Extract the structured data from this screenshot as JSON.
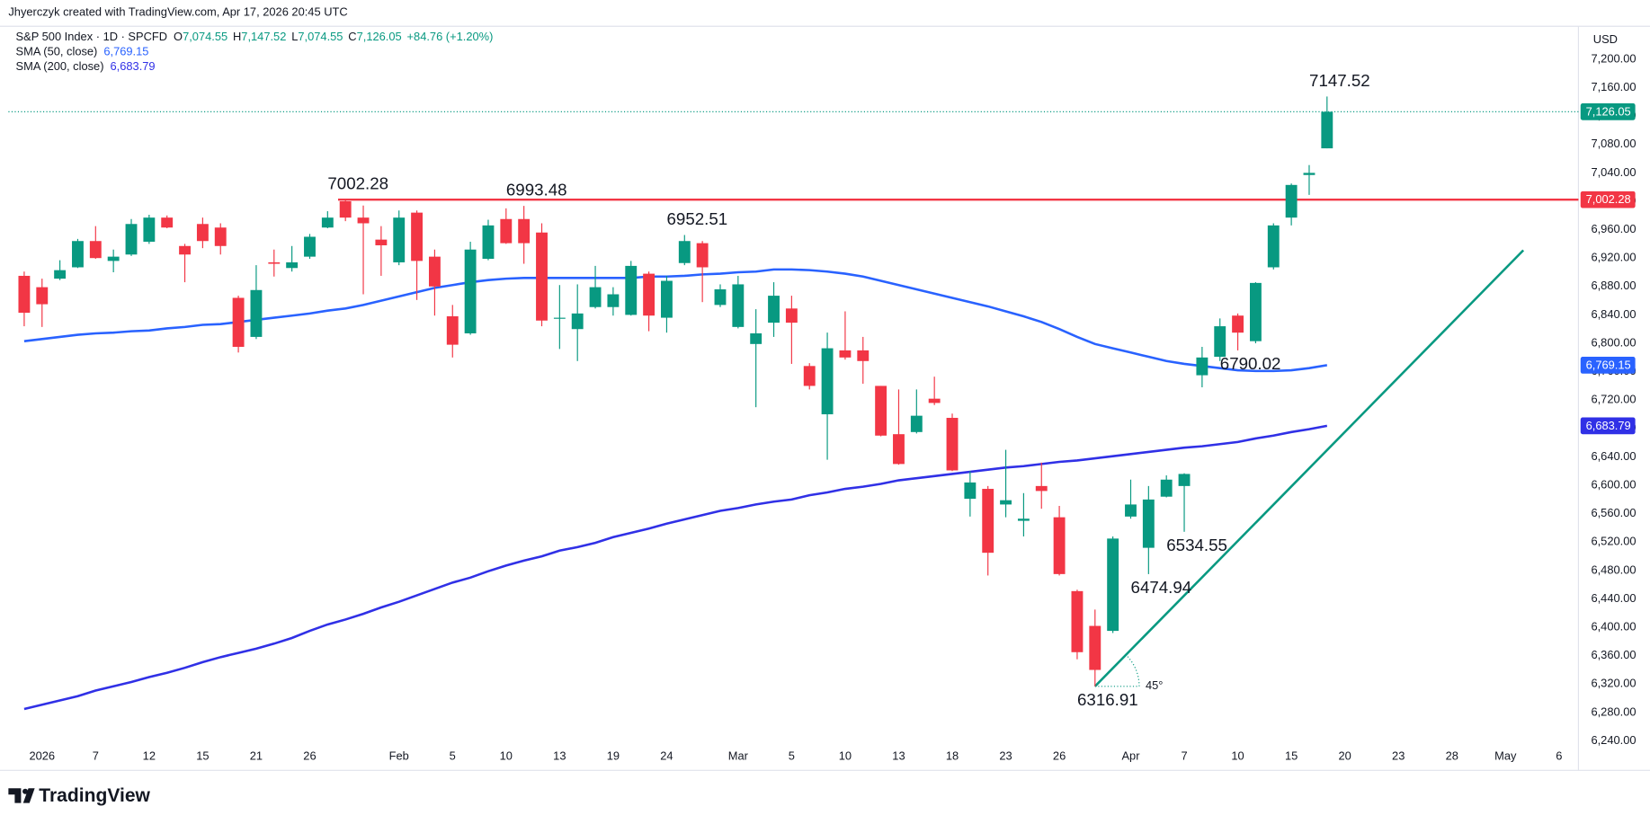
{
  "header": {
    "credit": "Jhyerczyk created with TradingView.com, Apr 17, 2026 20:45 UTC",
    "brand": "TradingView"
  },
  "chart_data": {
    "type": "candlestick",
    "title": "S&P 500 Index · 1D · SPCFD",
    "ohlc_legend": [
      {
        "key": "O",
        "value": "7,074.55"
      },
      {
        "key": "H",
        "value": "7,147.52"
      },
      {
        "key": "L",
        "value": "7,074.55"
      },
      {
        "key": "C",
        "value": "7,126.05"
      }
    ],
    "change": "+84.76 (+1.20%)",
    "close_label": "7,126.05",
    "currency": "USD",
    "colors": {
      "up": "#089981",
      "down": "#f23645"
    },
    "x": [
      "2025-12-31",
      "2026-01-02",
      "2026-01-05",
      "2026-01-06",
      "2026-01-07",
      "2026-01-08",
      "2026-01-09",
      "2026-01-12",
      "2026-01-13",
      "2026-01-14",
      "2026-01-15",
      "2026-01-16",
      "2026-01-20",
      "2026-01-21",
      "2026-01-22",
      "2026-01-23",
      "2026-01-26",
      "2026-01-27",
      "2026-01-28",
      "2026-01-29",
      "2026-01-30",
      "2026-02-02",
      "2026-02-03",
      "2026-02-04",
      "2026-02-05",
      "2026-02-06",
      "2026-02-09",
      "2026-02-10",
      "2026-02-11",
      "2026-02-12",
      "2026-02-13",
      "2026-02-17",
      "2026-02-18",
      "2026-02-19",
      "2026-02-20",
      "2026-02-23",
      "2026-02-24",
      "2026-02-25",
      "2026-02-26",
      "2026-02-27",
      "2026-03-02",
      "2026-03-03",
      "2026-03-04",
      "2026-03-05",
      "2026-03-06",
      "2026-03-09",
      "2026-03-10",
      "2026-03-11",
      "2026-03-12",
      "2026-03-13",
      "2026-03-16",
      "2026-03-17",
      "2026-03-18",
      "2026-03-19",
      "2026-03-20",
      "2026-03-23",
      "2026-03-24",
      "2026-03-25",
      "2026-03-26",
      "2026-03-27",
      "2026-03-30",
      "2026-03-31",
      "2026-04-01",
      "2026-04-02",
      "2026-04-06",
      "2026-04-07",
      "2026-04-08",
      "2026-04-09",
      "2026-04-10",
      "2026-04-13",
      "2026-04-14",
      "2026-04-15",
      "2026-04-16",
      "2026-04-17"
    ],
    "open": [
      6895,
      6879,
      6891,
      6907,
      6944,
      6916,
      6925,
      6943,
      6977,
      6937,
      6968,
      6963,
      6864,
      6809,
      6914,
      6906,
      6922,
      6963,
      7000,
      6977,
      6946,
      6914,
      6984,
      6922,
      6838,
      6814,
      6919,
      6975,
      6975,
      6956,
      6835,
      6820,
      6851,
      6851,
      6840,
      6898,
      6836,
      6913,
      6941,
      6854,
      6823,
      6799,
      6829,
      6849,
      6768,
      6700,
      6790,
      6790,
      6740,
      6672,
      6675,
      6722,
      6695,
      6581,
      6595,
      6573,
      6550,
      6599,
      6555,
      6451,
      6402,
      6395,
      6556,
      6512,
      6584,
      6599,
      6755,
      6781,
      6839,
      6803,
      6907,
      6977,
      7037,
      7074.55
    ],
    "high": [
      6901,
      6891,
      6917,
      6947,
      6965,
      6932,
      6975,
      6981,
      6980,
      6940,
      6977,
      6969,
      6867,
      6910,
      6932,
      6937,
      6954,
      6986,
      7002.28,
      6994,
      6965,
      6987,
      6987,
      6932,
      6854,
      6943,
      6974,
      6990,
      6993.48,
      6969,
      6882,
      6883,
      6909,
      6879,
      6916,
      6901,
      6895,
      6952.51,
      6944,
      6883,
      6895,
      6848,
      6886,
      6867,
      6772,
      6815,
      6845,
      6809,
      6740,
      6735,
      6735,
      6753,
      6701,
      6620,
      6599,
      6650,
      6589,
      6632,
      6571,
      6453,
      6425,
      6528,
      6608,
      6599,
      6614,
      6617,
      6795,
      6835,
      6842,
      6886,
      6969,
      7025,
      7051,
      7147.52
    ],
    "low": [
      6824,
      6823,
      6889,
      6906,
      6919,
      6900,
      6923,
      6940,
      6962,
      6886,
      6934,
      6925,
      6787,
      6806,
      6894,
      6901,
      6919,
      6962,
      6972,
      6869,
      6895,
      6910,
      6861,
      6839,
      6780,
      6812,
      6917,
      6940,
      6912,
      6824,
      6792,
      6775,
      6849,
      6839,
      6839,
      6817,
      6815,
      6910,
      6858,
      6851,
      6821,
      6710,
      6809,
      6771,
      6735,
      6636,
      6777,
      6743,
      6669,
      6629,
      6673,
      6713,
      6620,
      6556,
      6473,
      6555,
      6528,
      6567,
      6473,
      6355,
      6316.91,
      6392,
      6553,
      6474.94,
      6583,
      6534.55,
      6738,
      6775,
      6790.02,
      6800,
      6904,
      6966,
      7009,
      7074.55
    ],
    "close": [
      6843,
      6855,
      6903,
      6944,
      6920,
      6922,
      6968,
      6977,
      6963,
      6925,
      6944,
      6937,
      6795,
      6875,
      6912,
      6914,
      6950,
      6977,
      6977,
      6969,
      6938,
      6977,
      6916,
      6880,
      6798,
      6932,
      6966,
      6941,
      6941,
      6832,
      6836,
      6842,
      6879,
      6869,
      6909,
      6839,
      6888,
      6944,
      6907,
      6876,
      6883,
      6814,
      6867,
      6829,
      6740,
      6793,
      6780,
      6775,
      6670,
      6630,
      6698,
      6716,
      6621,
      6604,
      6505,
      6579,
      6553,
      6592,
      6475,
      6365,
      6340,
      6525,
      6573,
      6580,
      6608,
      6616,
      6780,
      6824,
      6815,
      6885,
      6966,
      7023,
      7040,
      7126.05
    ],
    "series": [
      {
        "name": "SMA (50, close)",
        "color": "#2962ff",
        "value_label": "6,769.15",
        "values": [
          6803,
          6806,
          6809,
          6812,
          6814,
          6815,
          6817,
          6818,
          6821,
          6823,
          6826,
          6827,
          6830,
          6833,
          6836,
          6839,
          6842,
          6846,
          6849,
          6854,
          6860,
          6866,
          6872,
          6878,
          6882,
          6886,
          6889,
          6891,
          6892,
          6892,
          6892,
          6892,
          6892,
          6892,
          6892,
          6894,
          6894,
          6895,
          6897,
          6898,
          6900,
          6901,
          6904,
          6904,
          6903,
          6901,
          6898,
          6894,
          6888,
          6882,
          6876,
          6870,
          6864,
          6858,
          6852,
          6845,
          6838,
          6830,
          6820,
          6809,
          6799,
          6793,
          6787,
          6781,
          6775,
          6771,
          6768,
          6765,
          6762,
          6761,
          6761,
          6762,
          6765,
          6769.15
        ]
      },
      {
        "name": "SMA (200, close)",
        "color": "#3030e6",
        "value_label": "6,683.79",
        "values": [
          6285,
          6291,
          6297,
          6303,
          6311,
          6317,
          6323,
          6330,
          6336,
          6343,
          6351,
          6358,
          6364,
          6370,
          6377,
          6385,
          6395,
          6404,
          6411,
          6419,
          6428,
          6436,
          6445,
          6454,
          6463,
          6470,
          6479,
          6487,
          6494,
          6500,
          6508,
          6513,
          6519,
          6527,
          6533,
          6539,
          6546,
          6552,
          6558,
          6564,
          6568,
          6573,
          6577,
          6580,
          6586,
          6590,
          6595,
          6598,
          6602,
          6607,
          6610,
          6613,
          6616,
          6619,
          6622,
          6625,
          6627,
          6630,
          6633,
          6635,
          6638,
          6641,
          6644,
          6647,
          6650,
          6653,
          6655,
          6658,
          6661,
          6666,
          6670,
          6675,
          6679,
          6683.79
        ]
      }
    ],
    "hline": {
      "value": 7002.28,
      "label": "7,002.28",
      "color": "#f23645",
      "from": "2026-01-28"
    },
    "trend_line": {
      "from": {
        "date": "2026-03-30",
        "value": 6316.91
      },
      "to": {
        "date": "2026-05-04",
        "value": 6931
      },
      "color": "#089981",
      "label": "45°"
    },
    "price_labels": [
      7147.52,
      7002.28,
      6993.48,
      6952.51,
      6790.02,
      6534.55,
      6474.94,
      6316.91
    ],
    "ylim": [
      6200,
      7242
    ],
    "yticks": [
      {
        "value": 6240,
        "label": "6,240.00"
      },
      {
        "value": 6280,
        "label": "6,280.00"
      },
      {
        "value": 6320,
        "label": "6,320.00"
      },
      {
        "value": 6360,
        "label": "6,360.00"
      },
      {
        "value": 6400,
        "label": "6,400.00"
      },
      {
        "value": 6440,
        "label": "6,440.00"
      },
      {
        "value": 6480,
        "label": "6,480.00"
      },
      {
        "value": 6520,
        "label": "6,520.00"
      },
      {
        "value": 6560,
        "label": "6,560.00"
      },
      {
        "value": 6600,
        "label": "6,600.00"
      },
      {
        "value": 6640,
        "label": "6,640.00"
      },
      {
        "value": 6680,
        "label": "6,680.00"
      },
      {
        "value": 6720,
        "label": "6,720.00"
      },
      {
        "value": 6760,
        "label": "6,760.00"
      },
      {
        "value": 6800,
        "label": "6,800.00"
      },
      {
        "value": 6840,
        "label": "6,840.00"
      },
      {
        "value": 6880,
        "label": "6,880.00"
      },
      {
        "value": 6920,
        "label": "6,920.00"
      },
      {
        "value": 6960,
        "label": "6,960.00"
      },
      {
        "value": 7000,
        "label": "7,000.00"
      },
      {
        "value": 7040,
        "label": "7,040.00"
      },
      {
        "value": 7080,
        "label": "7,080.00"
      },
      {
        "value": 7120,
        "label": "7,120.00"
      },
      {
        "value": 7160,
        "label": "7,160.00"
      },
      {
        "value": 7200,
        "label": "7,200.00"
      }
    ],
    "xticks": [
      {
        "value": "2026-01-02",
        "label": "2026"
      },
      {
        "value": "2026-01-07",
        "label": "7"
      },
      {
        "value": "2026-01-12",
        "label": "12"
      },
      {
        "value": "2026-01-15",
        "label": "15"
      },
      {
        "value": "2026-01-21",
        "label": "21"
      },
      {
        "value": "2026-01-26",
        "label": "26"
      },
      {
        "value": "2026-02-02",
        "label": "Feb"
      },
      {
        "value": "2026-02-05",
        "label": "5"
      },
      {
        "value": "2026-02-10",
        "label": "10"
      },
      {
        "value": "2026-02-13",
        "label": "13"
      },
      {
        "value": "2026-02-19",
        "label": "19"
      },
      {
        "value": "2026-02-24",
        "label": "24"
      },
      {
        "value": "2026-03-02",
        "label": "Mar"
      },
      {
        "value": "2026-03-05",
        "label": "5"
      },
      {
        "value": "2026-03-10",
        "label": "10"
      },
      {
        "value": "2026-03-13",
        "label": "13"
      },
      {
        "value": "2026-03-18",
        "label": "18"
      },
      {
        "value": "2026-03-23",
        "label": "23"
      },
      {
        "value": "2026-03-26",
        "label": "26"
      },
      {
        "value": "2026-04-01",
        "label": "Apr"
      },
      {
        "value": "2026-04-07",
        "label": "7"
      },
      {
        "value": "2026-04-10",
        "label": "10"
      },
      {
        "value": "2026-04-15",
        "label": "15"
      },
      {
        "value": "2026-04-20",
        "label": "20"
      },
      {
        "value": "2026-04-23",
        "label": "23"
      },
      {
        "value": "2026-04-28",
        "label": "28"
      },
      {
        "value": "2026-05-01",
        "label": "May"
      },
      {
        "value": "2026-05-06",
        "label": "6"
      }
    ],
    "grid": false
  }
}
